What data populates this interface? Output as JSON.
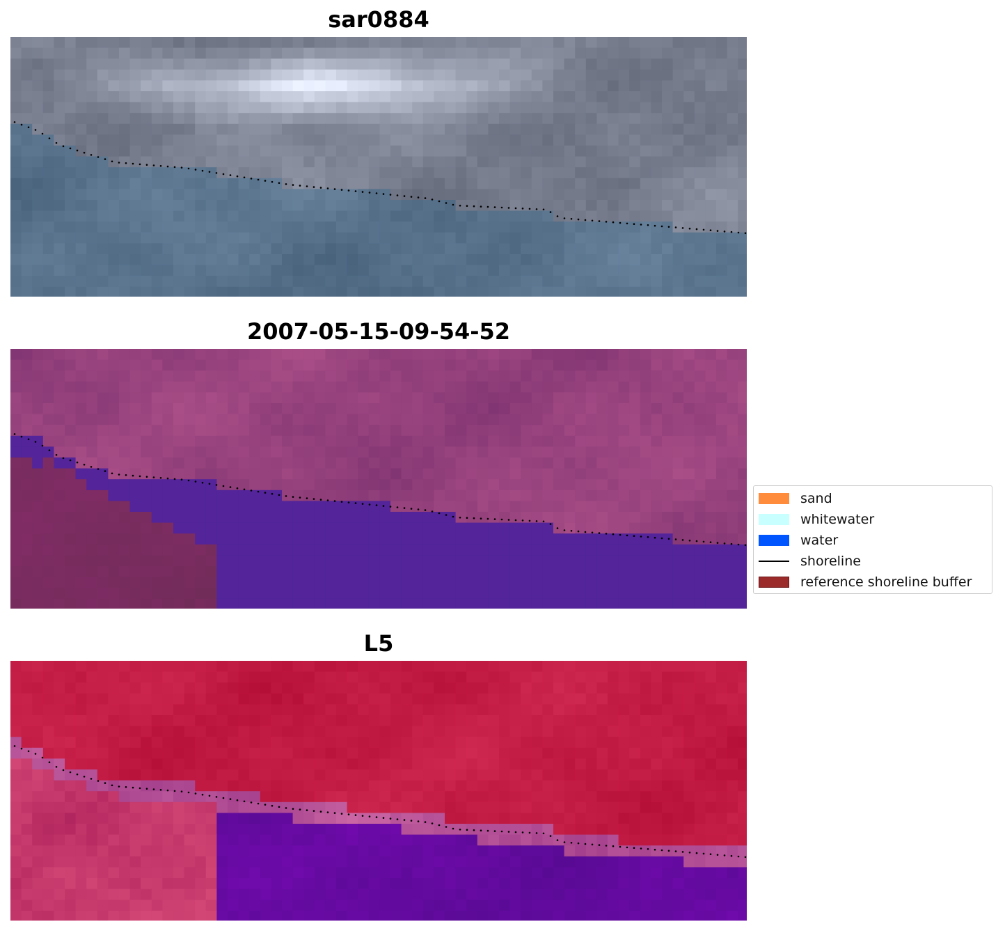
{
  "panels": [
    {
      "title": "sar0884",
      "mode": "rgb"
    },
    {
      "title": "2007-05-15-09-54-52",
      "mode": "classified"
    },
    {
      "title": "L5",
      "mode": "falsecolor"
    }
  ],
  "legend": {
    "items": [
      {
        "label": "sand",
        "color": "#ff8c3c",
        "type": "patch"
      },
      {
        "label": "whitewater",
        "color": "#c8ffff",
        "type": "patch"
      },
      {
        "label": "water",
        "color": "#0055ff",
        "type": "patch"
      },
      {
        "label": "shoreline",
        "color": "#000000",
        "type": "line"
      },
      {
        "label": "reference shoreline buffer",
        "color": "#9b2a2a",
        "type": "patch"
      }
    ]
  },
  "colors": {
    "water_class": "#53249a",
    "land_tint": "#9a4a80",
    "shoreline_dots": "#000000"
  }
}
